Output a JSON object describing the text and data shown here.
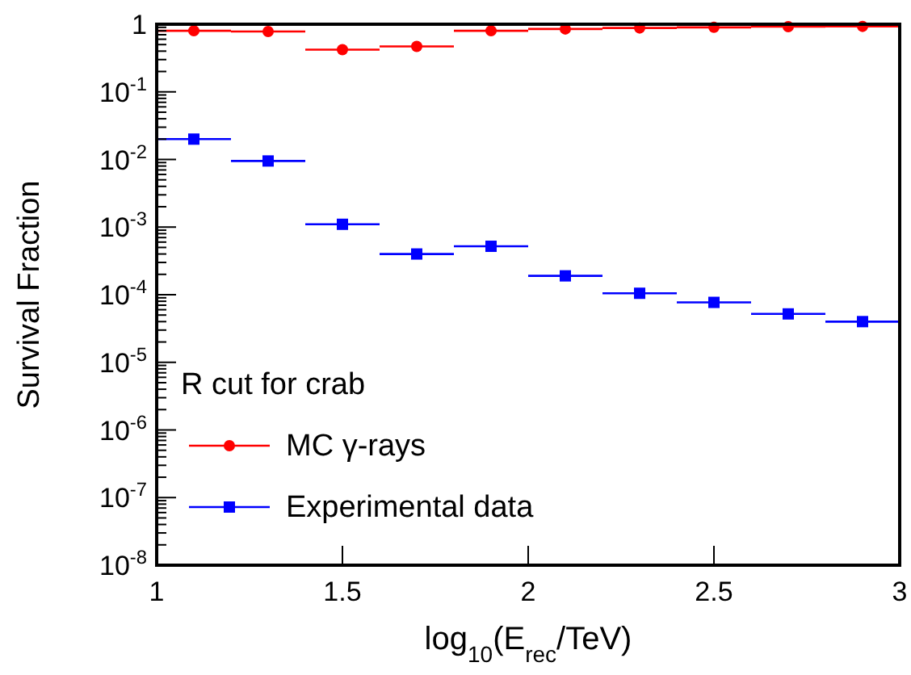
{
  "chart_data": {
    "type": "scatter",
    "xlabel": "log$_{10}$(E$_{rec}$/TeV)",
    "ylabel": "Survival Fraction",
    "legend_title": "R cut for crab",
    "legend": "bottom left",
    "log": "y",
    "xlim": [
      1,
      3
    ],
    "xticks": [
      1,
      1.5,
      2,
      2.5,
      3
    ],
    "ylim": [
      1e-08,
      1
    ],
    "yticks": [
      {
        "value": 1e-08,
        "label": "10$^{-8}$"
      },
      {
        "value": 1e-07,
        "label": "10$^{-7}$"
      },
      {
        "value": 1e-06,
        "label": "10$^{-6}$"
      },
      {
        "value": 1e-05,
        "label": "10$^{-5}$"
      },
      {
        "value": 0.0001,
        "label": "10$^{-4}$"
      },
      {
        "value": 0.001,
        "label": "10$^{-3}$"
      },
      {
        "value": 0.01,
        "label": "10$^{-2}$"
      },
      {
        "value": 0.1,
        "label": "10$^{-1}$"
      },
      1
    ],
    "x": [
      1.1,
      1.3,
      1.5,
      1.7,
      1.9,
      2.1,
      2.3,
      2.5,
      2.7,
      2.9
    ],
    "series": [
      {
        "name": "MC γ-rays",
        "color": "#ff0000",
        "marker": "circle",
        "values": [
          0.8,
          0.78,
          0.42,
          0.47,
          0.8,
          0.85,
          0.88,
          0.9,
          0.92,
          0.93
        ],
        "xerrors": [
          0.1,
          0.1,
          0.1,
          0.1,
          0.1,
          0.1,
          0.1,
          0.1,
          0.1,
          0.1
        ]
      },
      {
        "name": "Experimental data",
        "color": "#0000ff",
        "marker": "square",
        "values": [
          0.02,
          0.0095,
          0.0011,
          0.0004,
          0.00052,
          0.00019,
          0.000105,
          7.7e-05,
          5.2e-05,
          4e-05
        ],
        "xerrors": [
          0.1,
          0.1,
          0.1,
          0.1,
          0.1,
          0.1,
          0.1,
          0.1,
          0.1,
          0.1
        ]
      }
    ]
  }
}
